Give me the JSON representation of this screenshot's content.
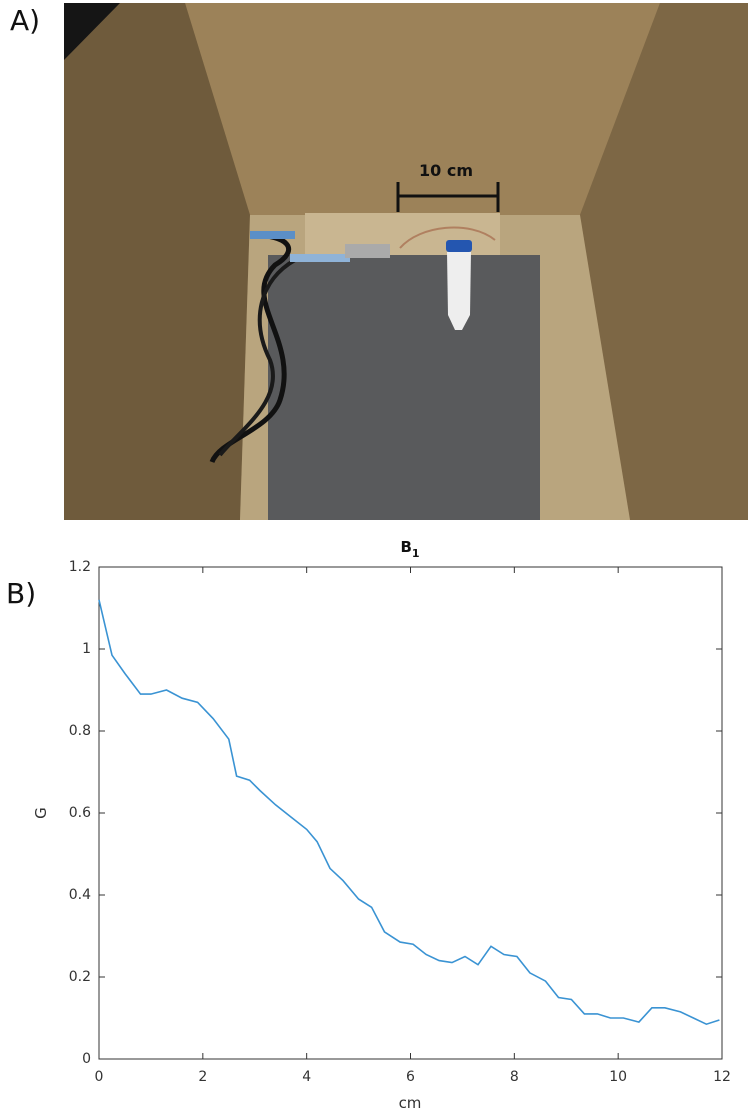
{
  "panels": {
    "a": {
      "label": "A)",
      "scale_label": "10 cm"
    },
    "b": {
      "label": "B)"
    }
  },
  "chart_data": {
    "type": "line",
    "title": "B",
    "title_subscript": "1",
    "xlabel": "cm",
    "ylabel": "G",
    "x": [
      0,
      0.25,
      0.5,
      0.8,
      1.0,
      1.3,
      1.6,
      1.9,
      2.2,
      2.5,
      2.65,
      2.9,
      3.1,
      3.4,
      3.7,
      4.0,
      4.2,
      4.45,
      4.7,
      5.0,
      5.25,
      5.5,
      5.8,
      6.05,
      6.3,
      6.55,
      6.8,
      7.05,
      7.3,
      7.55,
      7.8,
      8.05,
      8.3,
      8.6,
      8.85,
      9.1,
      9.35,
      9.6,
      9.85,
      10.1,
      10.4,
      10.65,
      10.9,
      11.2,
      11.45,
      11.7,
      11.95
    ],
    "values": [
      1.12,
      0.985,
      0.94,
      0.89,
      0.89,
      0.9,
      0.88,
      0.87,
      0.83,
      0.78,
      0.69,
      0.68,
      0.655,
      0.62,
      0.59,
      0.56,
      0.53,
      0.465,
      0.435,
      0.39,
      0.37,
      0.31,
      0.285,
      0.28,
      0.255,
      0.24,
      0.235,
      0.25,
      0.23,
      0.275,
      0.255,
      0.25,
      0.21,
      0.19,
      0.15,
      0.145,
      0.11,
      0.11,
      0.1,
      0.1,
      0.09,
      0.125,
      0.125,
      0.115,
      0.1,
      0.085,
      0.095
    ],
    "color": "#3a93d3",
    "xlim": [
      0,
      12
    ],
    "xticks": [
      0,
      2,
      4,
      6,
      8,
      10,
      12
    ],
    "ylim": [
      0,
      1.2
    ],
    "yticks": [
      0,
      0.2,
      0.4,
      0.6,
      0.8,
      1,
      1.2
    ]
  }
}
